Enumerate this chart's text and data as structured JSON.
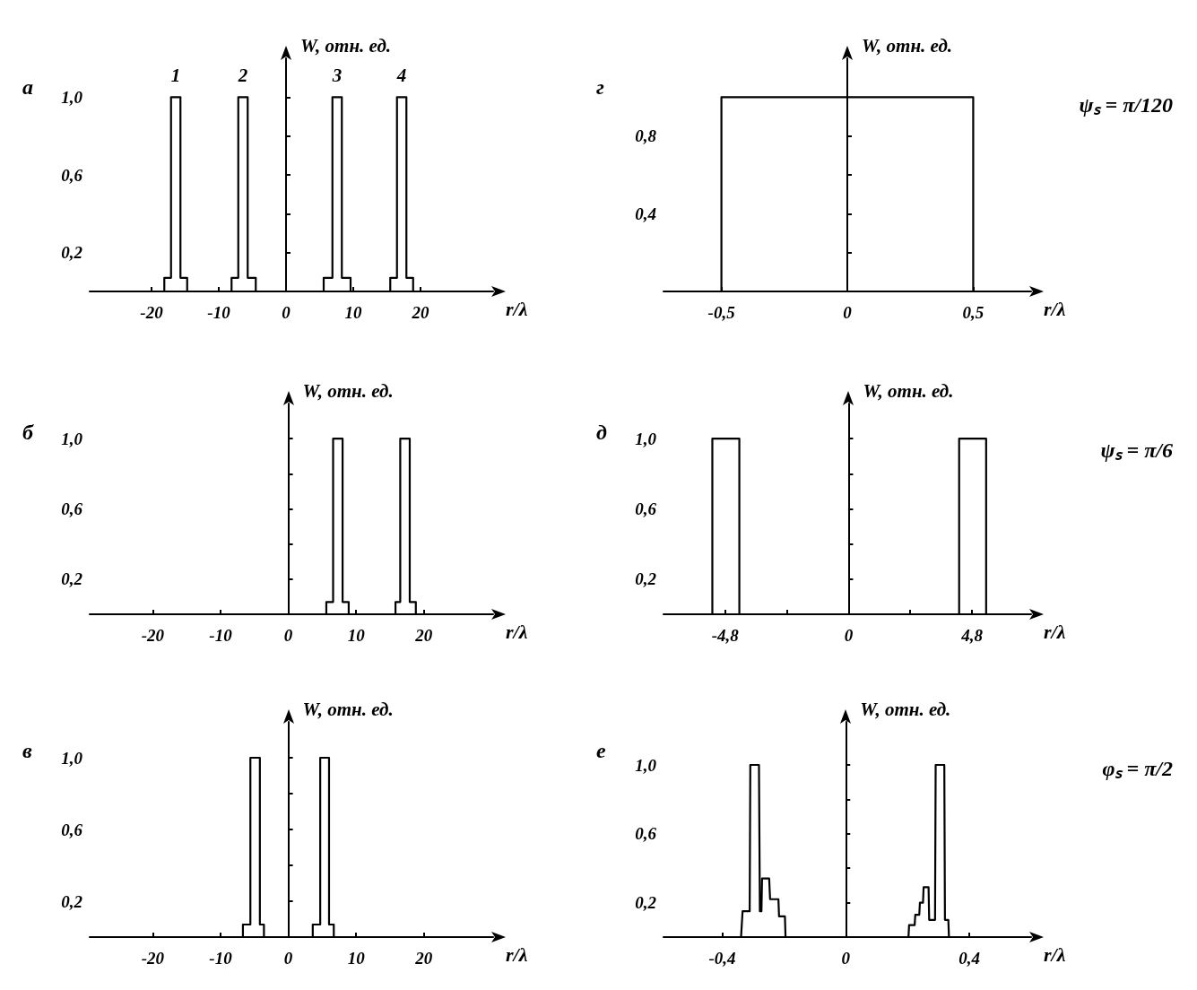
{
  "chart_data": [
    {
      "type": "line",
      "title": "а",
      "xlabel": "r/λ",
      "ylabel": "W, отн. ед.",
      "xlim": [
        -29.2,
        30.8
      ],
      "ylim": [
        0,
        1.2
      ],
      "xticks": [
        -20,
        -10,
        0,
        10,
        20
      ],
      "yticks": [
        {
          "value": 0.2,
          "label": "0,2"
        },
        {
          "value": 0.4,
          "label": null
        },
        {
          "value": 0.6,
          "label": "0,6"
        },
        {
          "value": 0.8,
          "label": null
        },
        {
          "value": 1.0,
          "label": "1,0"
        }
      ],
      "series": [
        {
          "color": "#000000",
          "x": [
            -18.1,
            -18.1,
            -17.1,
            -17.1,
            -15.7,
            -15.7,
            -14.7,
            -14.7,
            -8.1,
            -8.1,
            -7.1,
            -7.1,
            -5.7,
            -5.7,
            -4.5,
            -4.5,
            5.6,
            5.6,
            6.9,
            6.9,
            8.3,
            8.3,
            9.6,
            9.6,
            15.5,
            15.5,
            16.5,
            16.5,
            17.9,
            17.9,
            18.9,
            18.9
          ],
          "values": [
            0,
            0.07,
            0.07,
            1.0,
            1.0,
            0.07,
            0.07,
            0,
            0,
            0.07,
            0.07,
            1.0,
            1.0,
            0.07,
            0.07,
            0,
            0,
            0.07,
            0.07,
            1.0,
            1.0,
            0.07,
            0.07,
            0,
            0,
            0.07,
            0.07,
            1.0,
            1.0,
            0.07,
            0.07,
            0
          ]
        }
      ],
      "annotations": [
        {
          "text": "1",
          "x": -16.4,
          "y": 1.0
        },
        {
          "text": "2",
          "x": -6.4,
          "y": 1.0
        },
        {
          "text": "3",
          "x": 7.6,
          "y": 1.0
        },
        {
          "text": "4",
          "x": 17.2,
          "y": 1.0
        }
      ]
    },
    {
      "type": "line",
      "title": "б",
      "xlabel": "r/λ",
      "ylabel": "W, отн. ед.",
      "xlim": [
        -29.3,
        30.2
      ],
      "ylim": [
        0,
        1.2
      ],
      "xticks": [
        -20,
        -10,
        0,
        10,
        20
      ],
      "yticks": [
        {
          "value": 0.2,
          "label": "0,2"
        },
        {
          "value": 0.4,
          "label": null
        },
        {
          "value": 0.6,
          "label": "0,6"
        },
        {
          "value": 0.8,
          "label": null
        },
        {
          "value": 1.0,
          "label": "1,0"
        }
      ],
      "series": [
        {
          "color": "#000000",
          "x": [
            5.6,
            5.6,
            6.6,
            6.6,
            8.0,
            8.0,
            8.9,
            8.9,
            15.8,
            15.8,
            16.5,
            16.5,
            17.9,
            17.9,
            18.8,
            18.8
          ],
          "values": [
            0,
            0.07,
            0.07,
            1.0,
            1.0,
            0.07,
            0.07,
            0,
            0,
            0.07,
            0.07,
            1.0,
            1.0,
            0.07,
            0.07,
            0
          ]
        }
      ]
    },
    {
      "type": "line",
      "title": "в",
      "xlabel": "r/λ",
      "ylabel": "W, отн. ед.",
      "xlim": [
        -29.3,
        30.2
      ],
      "ylim": [
        0,
        1.2
      ],
      "xticks": [
        -20,
        -10,
        0,
        10,
        20
      ],
      "yticks": [
        {
          "value": 0.2,
          "label": "0,2"
        },
        {
          "value": 0.4,
          "label": null
        },
        {
          "value": 0.6,
          "label": "0,6"
        },
        {
          "value": 0.8,
          "label": null
        },
        {
          "value": 1.0,
          "label": "1,0"
        }
      ],
      "series": [
        {
          "color": "#000000",
          "x": [
            -6.7,
            -6.7,
            -5.6,
            -5.6,
            -4.2,
            -4.2,
            -3.6,
            -3.6,
            3.6,
            3.6,
            4.7,
            4.7,
            6.0,
            6.0,
            6.7,
            6.7
          ],
          "values": [
            0,
            0.07,
            0.07,
            1.0,
            1.0,
            0.07,
            0.07,
            0,
            0,
            0.07,
            0.07,
            1.0,
            1.0,
            0.07,
            0.07,
            0
          ]
        }
      ]
    },
    {
      "type": "line",
      "title": "г",
      "xlabel": "r/λ",
      "ylabel": "W, отн. ед.",
      "xlim": [
        -0.73,
        0.73
      ],
      "ylim": [
        0,
        1.2
      ],
      "xticks": [
        {
          "value": -0.5,
          "label": "-0,5"
        },
        0,
        {
          "value": 0.5,
          "label": "0,5"
        }
      ],
      "yticks": [
        {
          "value": 0.2,
          "label": null
        },
        {
          "value": 0.4,
          "label": "0,4"
        },
        {
          "value": 0.6,
          "label": null
        },
        {
          "value": 0.8,
          "label": "0,8"
        }
      ],
      "series": [
        {
          "color": "#000000",
          "x": [
            -0.5,
            -0.5,
            0.5,
            0.5
          ],
          "values": [
            0,
            1.0,
            1.0,
            0
          ]
        }
      ],
      "annotations": [
        "ψₛ = π/120"
      ]
    },
    {
      "type": "line",
      "title": "д",
      "xlabel": "r/λ",
      "ylabel": "W, отн. ед.",
      "xlim": [
        -7.2,
        7.1
      ],
      "ylim": [
        0,
        1.2
      ],
      "xticks": [
        {
          "value": -4.8,
          "label": "-4,8"
        },
        {
          "value": -2.4,
          "label": null
        },
        0,
        {
          "value": 2.4,
          "label": null
        },
        {
          "value": 4.8,
          "label": "4,8"
        }
      ],
      "yticks": [
        {
          "value": 0.2,
          "label": "0,2"
        },
        {
          "value": 0.4,
          "label": null
        },
        {
          "value": 0.6,
          "label": "0,6"
        },
        {
          "value": 0.8,
          "label": null
        },
        {
          "value": 1.0,
          "label": "1,0"
        }
      ],
      "series": [
        {
          "color": "#000000",
          "x": [
            -5.3,
            -5.3,
            -4.25,
            -4.25,
            4.3,
            4.3,
            5.35,
            5.35
          ],
          "values": [
            0,
            1.0,
            1.0,
            0,
            0,
            1.0,
            1.0,
            0
          ]
        }
      ],
      "annotations": [
        "ψₛ = π/6"
      ]
    },
    {
      "type": "line",
      "title": "е",
      "xlabel": "r/λ",
      "ylabel": "W, отн. ед.",
      "xlim": [
        -0.59,
        0.6
      ],
      "ylim": [
        0,
        1.25
      ],
      "xticks": [
        {
          "value": -0.4,
          "label": "-0,4"
        },
        0,
        {
          "value": 0.4,
          "label": "0,4"
        }
      ],
      "yticks": [
        {
          "value": 0.2,
          "label": "0,2"
        },
        {
          "value": 0.4,
          "label": null
        },
        {
          "value": 0.6,
          "label": "0,6"
        },
        {
          "value": 0.8,
          "label": null
        },
        {
          "value": 1.0,
          "label": "1,0"
        }
      ],
      "series": [
        {
          "color": "#000000",
          "x": [
            -0.339,
            -0.334,
            -0.311,
            -0.309,
            -0.281,
            -0.278,
            -0.273,
            -0.271,
            -0.248,
            -0.245,
            -0.218,
            -0.216,
            -0.197,
            -0.195,
            0.203,
            0.205,
            0.223,
            0.225,
            0.238,
            0.24,
            0.25,
            0.252,
            0.268,
            0.27,
            0.289,
            0.291,
            0.319,
            0.321,
            0.332,
            0.334
          ],
          "values": [
            0,
            0.15,
            0.15,
            1.0,
            1.0,
            0.15,
            0.15,
            0.34,
            0.34,
            0.22,
            0.22,
            0.12,
            0.12,
            0,
            0,
            0.07,
            0.07,
            0.13,
            0.13,
            0.2,
            0.2,
            0.29,
            0.29,
            0.1,
            0.1,
            1.0,
            1.0,
            0.1,
            0.1,
            0
          ]
        }
      ],
      "annotations": [
        "φₛ = π/2"
      ]
    }
  ]
}
